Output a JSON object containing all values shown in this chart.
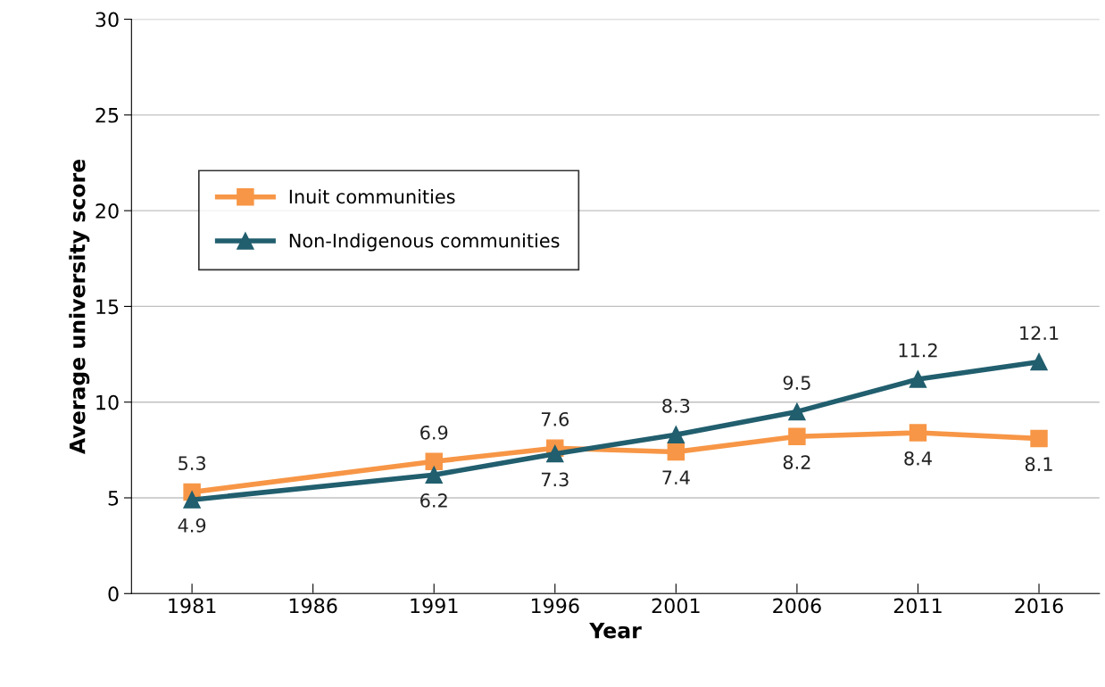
{
  "chart_data": {
    "type": "line",
    "xlabel": "Year",
    "ylabel": "Average university score",
    "x": [
      1981,
      1991,
      1996,
      2001,
      2006,
      2011,
      2016
    ],
    "series": [
      {
        "name": "Inuit communities",
        "color": "#f79646",
        "marker": "square",
        "values": [
          5.3,
          6.9,
          7.6,
          7.4,
          8.2,
          8.4,
          8.1
        ]
      },
      {
        "name": "Non-Indigenous communities",
        "color": "#215e6e",
        "marker": "triangle",
        "values": [
          4.9,
          6.2,
          7.3,
          8.3,
          9.5,
          11.2,
          12.1
        ]
      }
    ],
    "xlim": [
      1978.5,
      2018.5
    ],
    "xticks": [
      1981,
      1986,
      1991,
      1996,
      2001,
      2006,
      2011,
      2016
    ],
    "ylim": [
      0,
      30
    ],
    "yticks": [
      0,
      5,
      10,
      15,
      20,
      25,
      30
    ],
    "grid": "y",
    "legend": "center left",
    "data_labels": true,
    "line_style": "solid"
  }
}
